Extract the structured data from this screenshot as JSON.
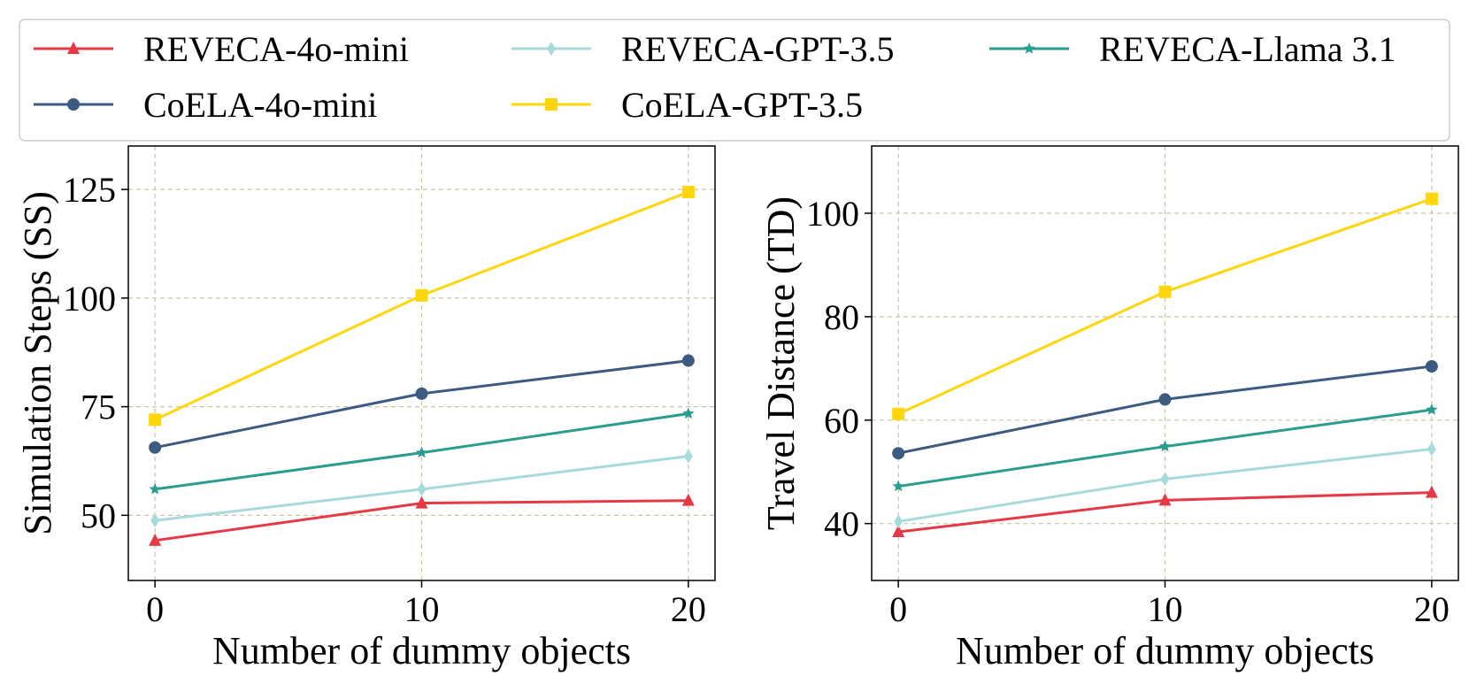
{
  "legend": {
    "entries": [
      {
        "label": "REVECA-4o-mini",
        "color": "#e63946",
        "marker": "triangle"
      },
      {
        "label": "CoELA-4o-mini",
        "color": "#3d5a80",
        "marker": "circle"
      },
      {
        "label": "REVECA-GPT-3.5",
        "color": "#a8dadc",
        "marker": "diamond"
      },
      {
        "label": "CoELA-GPT-3.5",
        "color": "#ffd60a",
        "marker": "square"
      },
      {
        "label": "REVECA-Llama 3.1",
        "color": "#2a9d8f",
        "marker": "star"
      }
    ]
  },
  "chart_data": [
    {
      "type": "line",
      "title": "",
      "xlabel": "Number of dummy objects",
      "ylabel": "Simulation Steps (SS)",
      "x": [
        0,
        10,
        20
      ],
      "xticks": [
        0,
        10,
        20
      ],
      "xticklabels": [
        "0",
        "10",
        "20"
      ],
      "xlim": [
        -1,
        21
      ],
      "ylim": [
        35,
        135
      ],
      "yticks": [
        50,
        75,
        100,
        125
      ],
      "yticklabels": [
        "50",
        "75",
        "100",
        "125"
      ],
      "grid": true,
      "series": [
        {
          "name": "REVECA-4o-mini",
          "values": [
            44.2,
            52.8,
            53.4
          ]
        },
        {
          "name": "CoELA-4o-mini",
          "values": [
            65.6,
            78.0,
            85.6
          ]
        },
        {
          "name": "REVECA-GPT-3.5",
          "values": [
            48.8,
            56.0,
            63.6
          ]
        },
        {
          "name": "CoELA-GPT-3.5",
          "values": [
            72.0,
            100.6,
            124.4
          ]
        },
        {
          "name": "REVECA-Llama 3.1",
          "values": [
            56.0,
            64.4,
            73.4
          ]
        }
      ]
    },
    {
      "type": "line",
      "title": "",
      "xlabel": "Number of dummy objects",
      "ylabel": "Travel Distance (TD)",
      "x": [
        0,
        10,
        20
      ],
      "xticks": [
        0,
        10,
        20
      ],
      "xticklabels": [
        "0",
        "10",
        "20"
      ],
      "xlim": [
        -1,
        21
      ],
      "ylim": [
        29,
        113
      ],
      "yticks": [
        40,
        60,
        80,
        100
      ],
      "yticklabels": [
        "40",
        "60",
        "80",
        "100"
      ],
      "grid": true,
      "series": [
        {
          "name": "REVECA-4o-mini",
          "values": [
            38.4,
            44.5,
            46.0
          ]
        },
        {
          "name": "CoELA-4o-mini",
          "values": [
            53.6,
            64.0,
            70.4
          ]
        },
        {
          "name": "REVECA-GPT-3.5",
          "values": [
            40.4,
            48.6,
            54.4
          ]
        },
        {
          "name": "CoELA-GPT-3.5",
          "values": [
            61.2,
            84.8,
            102.8
          ]
        },
        {
          "name": "REVECA-Llama 3.1",
          "values": [
            47.2,
            54.9,
            62.0
          ]
        }
      ]
    }
  ]
}
